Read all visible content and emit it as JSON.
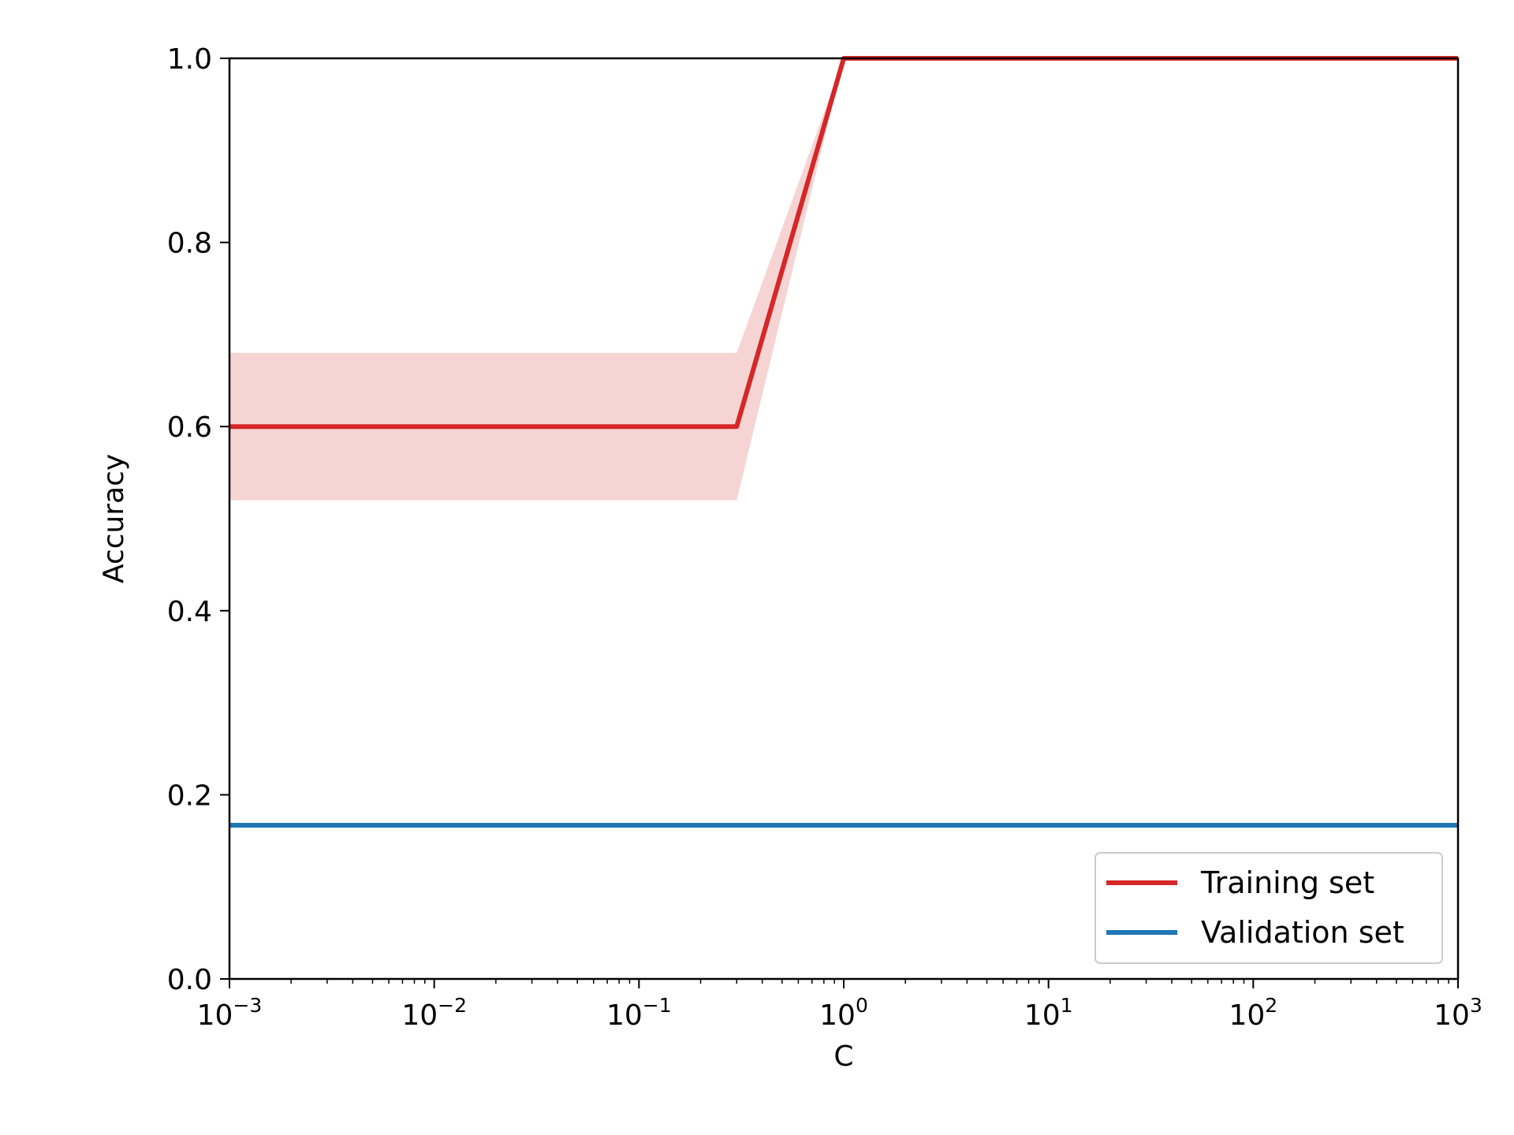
{
  "chart_data": {
    "type": "line",
    "title": "",
    "xlabel": "C",
    "ylabel": "Accuracy",
    "xscale": "log",
    "xlim": [
      0.001,
      1000
    ],
    "ylim": [
      0.0,
      1.0
    ],
    "grid": false,
    "legend_position": "bottom-right",
    "xticks": [
      {
        "value": 0.001,
        "base": "10",
        "exp": "−3"
      },
      {
        "value": 0.01,
        "base": "10",
        "exp": "−2"
      },
      {
        "value": 0.1,
        "base": "10",
        "exp": "−1"
      },
      {
        "value": 1,
        "base": "10",
        "exp": "0"
      },
      {
        "value": 10,
        "base": "10",
        "exp": "1"
      },
      {
        "value": 100,
        "base": "10",
        "exp": "2"
      },
      {
        "value": 1000,
        "base": "10",
        "exp": "3"
      }
    ],
    "yticks": [
      {
        "value": 0.0,
        "label": "0.0"
      },
      {
        "value": 0.2,
        "label": "0.2"
      },
      {
        "value": 0.4,
        "label": "0.4"
      },
      {
        "value": 0.6,
        "label": "0.6"
      },
      {
        "value": 0.8,
        "label": "0.8"
      },
      {
        "value": 1.0,
        "label": "1.0"
      }
    ],
    "series": [
      {
        "name": "Training set",
        "color": "#d62728",
        "x": [
          0.001,
          0.3,
          1,
          1000
        ],
        "y": [
          0.6,
          0.6,
          1.0,
          1.0
        ],
        "band_lower": [
          0.52,
          0.52,
          1.0,
          1.0
        ],
        "band_upper": [
          0.68,
          0.68,
          1.0,
          1.0
        ],
        "band_color": "#d62728",
        "band_opacity": 0.2
      },
      {
        "name": "Validation set",
        "color": "#1f77b4",
        "x": [
          0.001,
          1000
        ],
        "y": [
          0.167,
          0.167
        ]
      }
    ]
  }
}
